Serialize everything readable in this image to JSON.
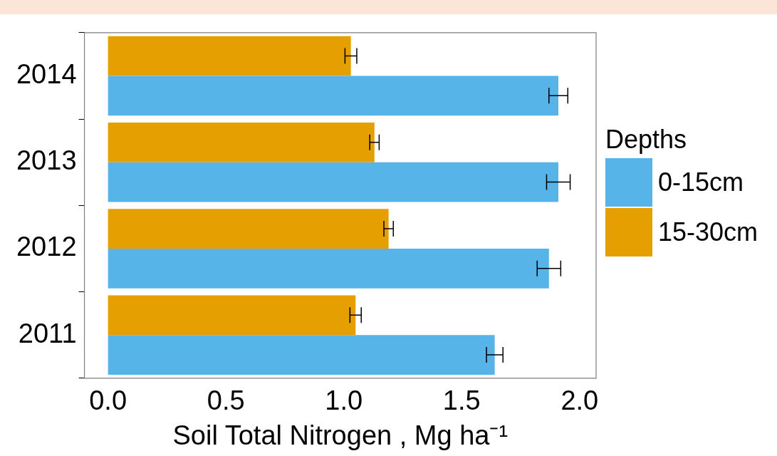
{
  "chart_data": {
    "type": "bar",
    "orientation": "horizontal",
    "xlabel": "Soil Total Nitrogen , Mg ha⁻¹",
    "legend_title": "Depths",
    "legend": "right",
    "grid": false,
    "categories": [
      "2014",
      "2013",
      "2012",
      "2011"
    ],
    "xlim": [
      -0.1,
      2.07
    ],
    "xticks": [
      {
        "value": 0,
        "label": "0.0"
      },
      {
        "value": 0.5,
        "label": "0.5"
      },
      {
        "value": 1,
        "label": "1.0"
      },
      {
        "value": 1.5,
        "label": "1.5"
      },
      {
        "value": 2,
        "label": "2.0"
      }
    ],
    "series": [
      {
        "name": "0-15cm",
        "color": "#56b4e9",
        "values": [
          1.91,
          1.91,
          1.87,
          1.64
        ],
        "errors": [
          0.04,
          0.05,
          0.05,
          0.035
        ]
      },
      {
        "name": "15-30cm",
        "color": "#e69f00",
        "values": [
          1.03,
          1.13,
          1.19,
          1.05
        ],
        "errors": [
          0.025,
          0.02,
          0.02,
          0.024
        ]
      }
    ]
  }
}
